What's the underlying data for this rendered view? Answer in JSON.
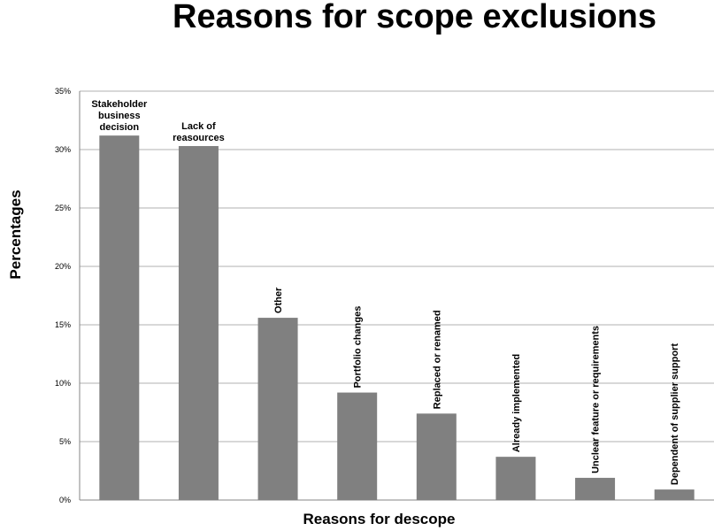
{
  "chart_data": {
    "type": "bar",
    "title": "Reasons for scope exclusions",
    "xlabel": "Reasons for descope",
    "ylabel": "Percentages",
    "ylim": [
      0,
      35
    ],
    "yticks": [
      "0%",
      "5%",
      "10%",
      "15%",
      "20%",
      "25%",
      "30%",
      "35%"
    ],
    "grid": true,
    "legend": "none",
    "bar_color": "#808080",
    "categories": [
      [
        "Stakeholder",
        "business",
        "decision"
      ],
      [
        "Lack of",
        "reasources"
      ],
      "Other",
      "Portfolio changes",
      "Replaced or renamed",
      "Already implemented",
      "Unclear feature or requirements",
      "Dependent of supplier support"
    ],
    "values": [
      31.2,
      30.3,
      15.6,
      9.2,
      7.4,
      3.7,
      1.9,
      0.9
    ]
  }
}
